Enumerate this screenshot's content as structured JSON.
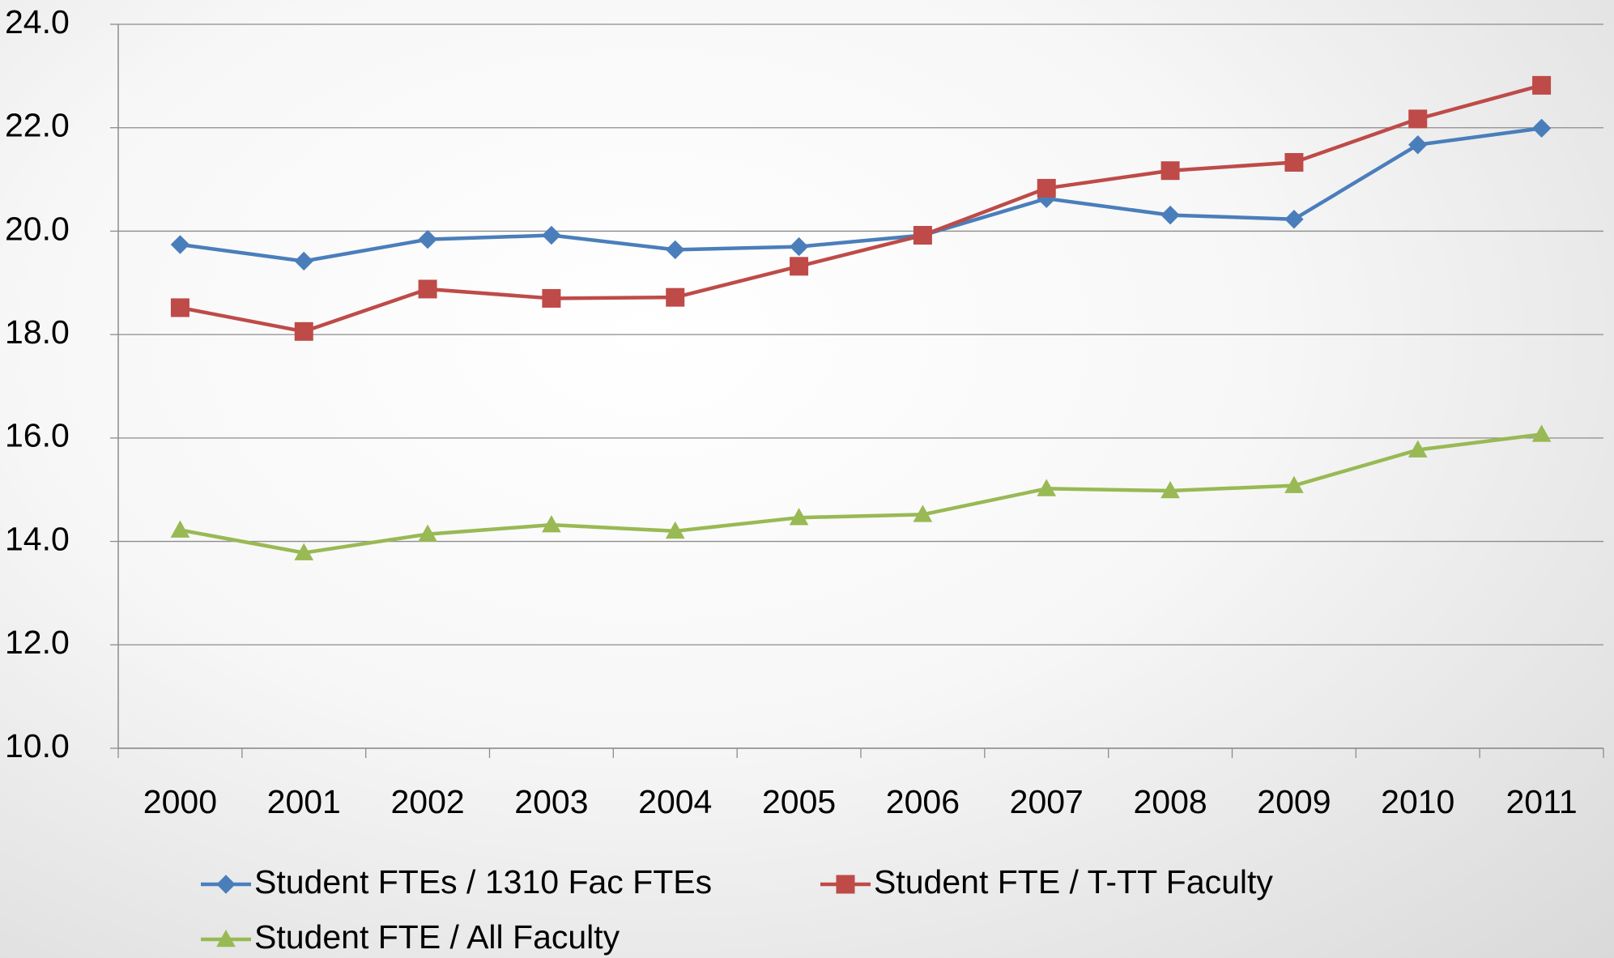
{
  "chart_data": {
    "type": "line",
    "categories": [
      "2000",
      "2001",
      "2002",
      "2003",
      "2004",
      "2005",
      "2006",
      "2007",
      "2008",
      "2009",
      "2010",
      "2011"
    ],
    "series": [
      {
        "name": "Student FTEs / 1310 Fac FTEs",
        "color": "#4a7ebb",
        "marker": "diamond",
        "values": [
          19.74,
          19.42,
          19.84,
          19.92,
          19.64,
          19.7,
          19.92,
          20.63,
          20.31,
          20.23,
          21.67,
          21.99
        ]
      },
      {
        "name": "Student FTE / T-TT Faculty",
        "color": "#be4b48",
        "marker": "square",
        "values": [
          18.52,
          18.06,
          18.88,
          18.7,
          18.72,
          19.32,
          19.92,
          20.83,
          21.17,
          21.33,
          22.17,
          22.82
        ]
      },
      {
        "name": "Student FTE / All Faculty",
        "color": "#98b954",
        "marker": "triangle",
        "values": [
          14.22,
          13.78,
          14.14,
          14.32,
          14.2,
          14.46,
          14.52,
          15.02,
          14.98,
          15.08,
          15.77,
          16.07
        ]
      }
    ],
    "ylim": [
      10,
      24
    ],
    "yticks": [
      {
        "value": 10,
        "label": "10.0"
      },
      {
        "value": 12,
        "label": "12.0"
      },
      {
        "value": 14,
        "label": "14.0"
      },
      {
        "value": 16,
        "label": "16.0"
      },
      {
        "value": 18,
        "label": "18.0"
      },
      {
        "value": 20,
        "label": "20.0"
      },
      {
        "value": 22,
        "label": "22.0"
      },
      {
        "value": 24,
        "label": "24.0"
      }
    ],
    "grid": true,
    "legend": "bottom"
  }
}
